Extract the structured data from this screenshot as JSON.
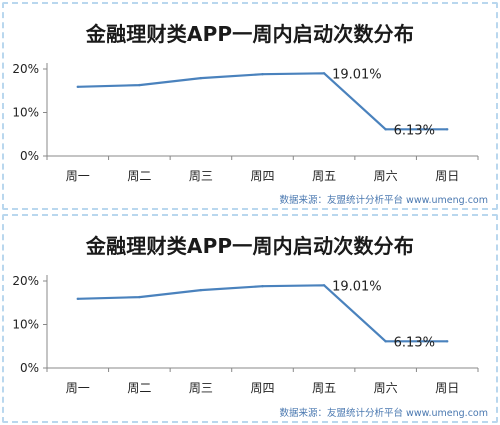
{
  "chart_data": [
    {
      "type": "line",
      "title": "金融理财类APP一周内启动次数分布",
      "categories": [
        "周一",
        "周二",
        "周三",
        "周四",
        "周五",
        "周六",
        "周日"
      ],
      "values": [
        15.9,
        16.3,
        17.9,
        18.8,
        19.01,
        6.13,
        6.13
      ],
      "ylim": [
        0,
        20
      ],
      "yticks": [
        "0%",
        "10%",
        "20%"
      ],
      "data_labels": [
        {
          "index": 4,
          "text": "19.01%"
        },
        {
          "index": 5,
          "text": "6.13%"
        }
      ],
      "line_color": "#4a82bd",
      "grid": false,
      "source": "数据来源：友盟统计分析平台 www.umeng.com"
    },
    {
      "type": "line",
      "title": "金融理财类APP一周内启动次数分布",
      "categories": [
        "周一",
        "周二",
        "周三",
        "周四",
        "周五",
        "周六",
        "周日"
      ],
      "values": [
        15.9,
        16.3,
        17.9,
        18.8,
        19.01,
        6.13,
        6.13
      ],
      "ylim": [
        0,
        20
      ],
      "yticks": [
        "0%",
        "10%",
        "20%"
      ],
      "data_labels": [
        {
          "index": 4,
          "text": "19.01%"
        },
        {
          "index": 5,
          "text": "6.13%"
        }
      ],
      "line_color": "#4a82bd",
      "grid": false,
      "source": "数据来源：友盟统计分析平台 www.umeng.com"
    }
  ]
}
